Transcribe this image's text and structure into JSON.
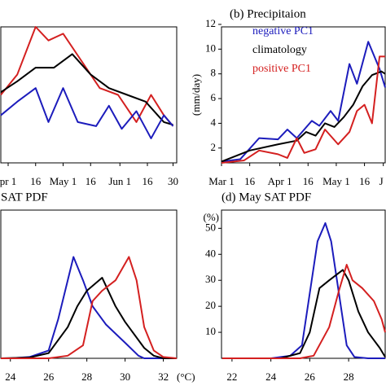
{
  "chart_data": [
    {
      "type": "line",
      "xlim": [
        -4,
        92
      ],
      "ylim": [
        0,
        10
      ],
      "xticks": [
        {
          "value": 0,
          "label": "pr 1"
        },
        {
          "value": 15,
          "label": "16"
        },
        {
          "value": 30,
          "label": "May 1"
        },
        {
          "value": 45,
          "label": "16"
        },
        {
          "value": 61,
          "label": "Jun 1"
        },
        {
          "value": 76,
          "label": "16"
        },
        {
          "value": 90,
          "label": "30"
        }
      ],
      "series": [
        {
          "color": "#d42020",
          "x": [
            -4,
            5,
            15,
            22,
            30,
            40,
            50,
            60,
            70,
            78,
            85,
            90
          ],
          "values": [
            5,
            6.5,
            10,
            9,
            9.5,
            7.5,
            5.5,
            5,
            3,
            5,
            3.5,
            2.7
          ]
        },
        {
          "color": "#000000",
          "x": [
            -4,
            5,
            15,
            25,
            35,
            45,
            55,
            65,
            75,
            85,
            90
          ],
          "values": [
            5.2,
            6,
            7,
            7,
            8,
            6.5,
            5.5,
            5,
            4.5,
            3,
            2.8
          ]
        },
        {
          "color": "#1c1cbc",
          "x": [
            -4,
            5,
            15,
            22,
            30,
            38,
            48,
            55,
            62,
            70,
            78,
            85,
            90
          ],
          "values": [
            3.5,
            4.5,
            5.5,
            3,
            5.5,
            3,
            2.7,
            4.2,
            2.5,
            3.8,
            1.8,
            3.5,
            2.7
          ]
        }
      ]
    },
    {
      "type": "line",
      "title": "(b) Precipitaion",
      "y_label": "(mm/day)",
      "xlim": [
        0,
        87
      ],
      "ylim": [
        0.8,
        11.8
      ],
      "xticks": [
        {
          "value": 0,
          "label": "Mar 1"
        },
        {
          "value": 15,
          "label": "16"
        },
        {
          "value": 31,
          "label": "Apr 1"
        },
        {
          "value": 46,
          "label": "16"
        },
        {
          "value": 61,
          "label": "May 1"
        },
        {
          "value": 76,
          "label": "16"
        },
        {
          "value": 86,
          "label": "J"
        }
      ],
      "yticks": [
        2,
        4,
        6,
        8,
        10,
        12
      ],
      "series": [
        {
          "name": "negative PC1",
          "color": "#1c1cbc",
          "x": [
            0,
            10,
            20,
            30,
            35,
            40,
            48,
            52,
            58,
            62,
            68,
            72,
            78,
            84,
            87
          ],
          "values": [
            0.9,
            1.1,
            2.8,
            2.7,
            3.5,
            2.8,
            4.2,
            3.8,
            5.0,
            4.2,
            8.8,
            7.2,
            10.6,
            8.4,
            6.9
          ]
        },
        {
          "name": "climatology",
          "color": "#000000",
          "x": [
            0,
            15,
            30,
            40,
            45,
            50,
            55,
            60,
            65,
            70,
            75,
            80,
            85,
            87
          ],
          "values": [
            0.9,
            1.8,
            2.3,
            2.6,
            3.3,
            3.0,
            4.0,
            3.7,
            4.5,
            5.5,
            7.0,
            7.9,
            8.2,
            8.0
          ]
        },
        {
          "name": "positive PC1",
          "color": "#d42020",
          "x": [
            0,
            12,
            20,
            30,
            35,
            40,
            44,
            50,
            55,
            62,
            68,
            72,
            76,
            80,
            84,
            87
          ],
          "values": [
            0.8,
            1.0,
            1.8,
            1.5,
            1.2,
            2.8,
            1.6,
            1.9,
            3.5,
            2.3,
            3.3,
            5.0,
            5.5,
            4.0,
            9.4,
            9.4
          ]
        }
      ]
    },
    {
      "type": "line",
      "title": "SAT PDF",
      "x_label": "(°C)",
      "xlim": [
        23.5,
        32.7
      ],
      "ylim": [
        0,
        57
      ],
      "xticks": [
        24,
        26,
        28,
        30,
        32
      ],
      "series": [
        {
          "color": "#1c1cbc",
          "x": [
            23.5,
            24,
            25,
            26,
            26.5,
            27,
            27.3,
            27.8,
            28.3,
            29,
            30,
            30.7,
            31,
            32.7
          ],
          "values": [
            0,
            0,
            0.5,
            3,
            15,
            30,
            39,
            30,
            20,
            13,
            6,
            1,
            0,
            0
          ]
        },
        {
          "color": "#000000",
          "x": [
            23.5,
            25,
            26,
            27,
            27.5,
            28,
            28.8,
            29.5,
            30,
            31,
            31.5,
            32,
            32.7
          ],
          "values": [
            0,
            0.3,
            2,
            12,
            20,
            26,
            31,
            20,
            14,
            4,
            1,
            0,
            0
          ]
        },
        {
          "color": "#d42020",
          "x": [
            23.5,
            26,
            27,
            27.8,
            28.3,
            28.8,
            29.5,
            30.2,
            30.6,
            31,
            31.5,
            32,
            32.7
          ],
          "values": [
            0,
            0,
            1,
            5,
            22,
            26,
            30,
            39,
            30,
            12,
            3,
            0.5,
            0
          ]
        }
      ]
    },
    {
      "type": "line",
      "title": "(d) May SAT PDF",
      "y_label": "(%)",
      "xlim": [
        21.46,
        29.88
      ],
      "ylim": [
        0,
        57
      ],
      "xticks": [
        22,
        24,
        26,
        28
      ],
      "yticks": [
        10,
        20,
        30,
        40,
        50
      ],
      "series": [
        {
          "color": "#1c1cbc",
          "x": [
            21.5,
            24,
            25,
            25.6,
            26,
            26.4,
            26.8,
            27.1,
            27.5,
            27.9,
            28.3,
            29,
            29.88
          ],
          "values": [
            0,
            0,
            1,
            5,
            25,
            45,
            52,
            45,
            25,
            5,
            0.5,
            0,
            0
          ]
        },
        {
          "color": "#000000",
          "x": [
            21.5,
            24.5,
            25.5,
            26,
            26.5,
            27,
            27.7,
            28,
            28.5,
            29,
            29.6,
            29.88
          ],
          "values": [
            0,
            0,
            2,
            10,
            27,
            30,
            34,
            30,
            18,
            10,
            4,
            0.5
          ]
        },
        {
          "color": "#d42020",
          "x": [
            21.5,
            25.5,
            26.2,
            27,
            27.5,
            27.9,
            28.2,
            28.7,
            29.3,
            29.7,
            29.88
          ],
          "values": [
            0,
            0,
            1,
            12,
            26,
            36,
            30,
            27,
            22,
            15,
            10
          ]
        }
      ]
    }
  ]
}
